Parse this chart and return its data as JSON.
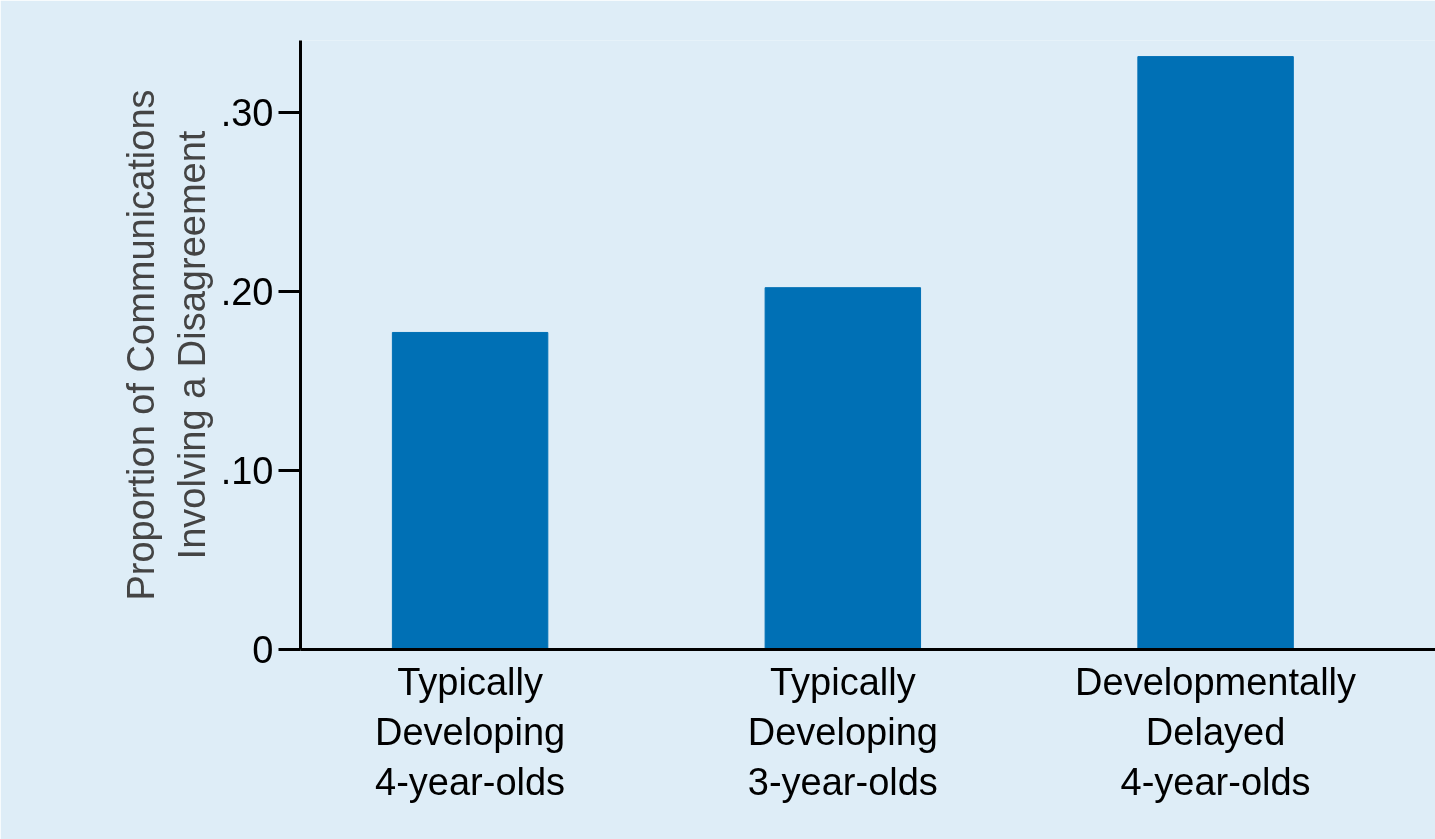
{
  "chart_data": {
    "type": "bar",
    "ylabel": "Proportion of Communications\nInvolving a Disagreement",
    "categories": [
      "Typically Developing 4-year-olds",
      "Typically Developing 3-year-olds",
      "Developmentally Delayed 4-year-olds"
    ],
    "values": [
      0.177,
      0.202,
      0.331
    ],
    "color": "#0070b5",
    "ylim": [
      0,
      0.34
    ],
    "yticks": [
      0,
      {
        "value": 0.1,
        "label": ".10"
      },
      {
        "value": 0.2,
        "label": ".20"
      },
      {
        "value": 0.3,
        "label": ".30"
      }
    ],
    "grid": false
  }
}
